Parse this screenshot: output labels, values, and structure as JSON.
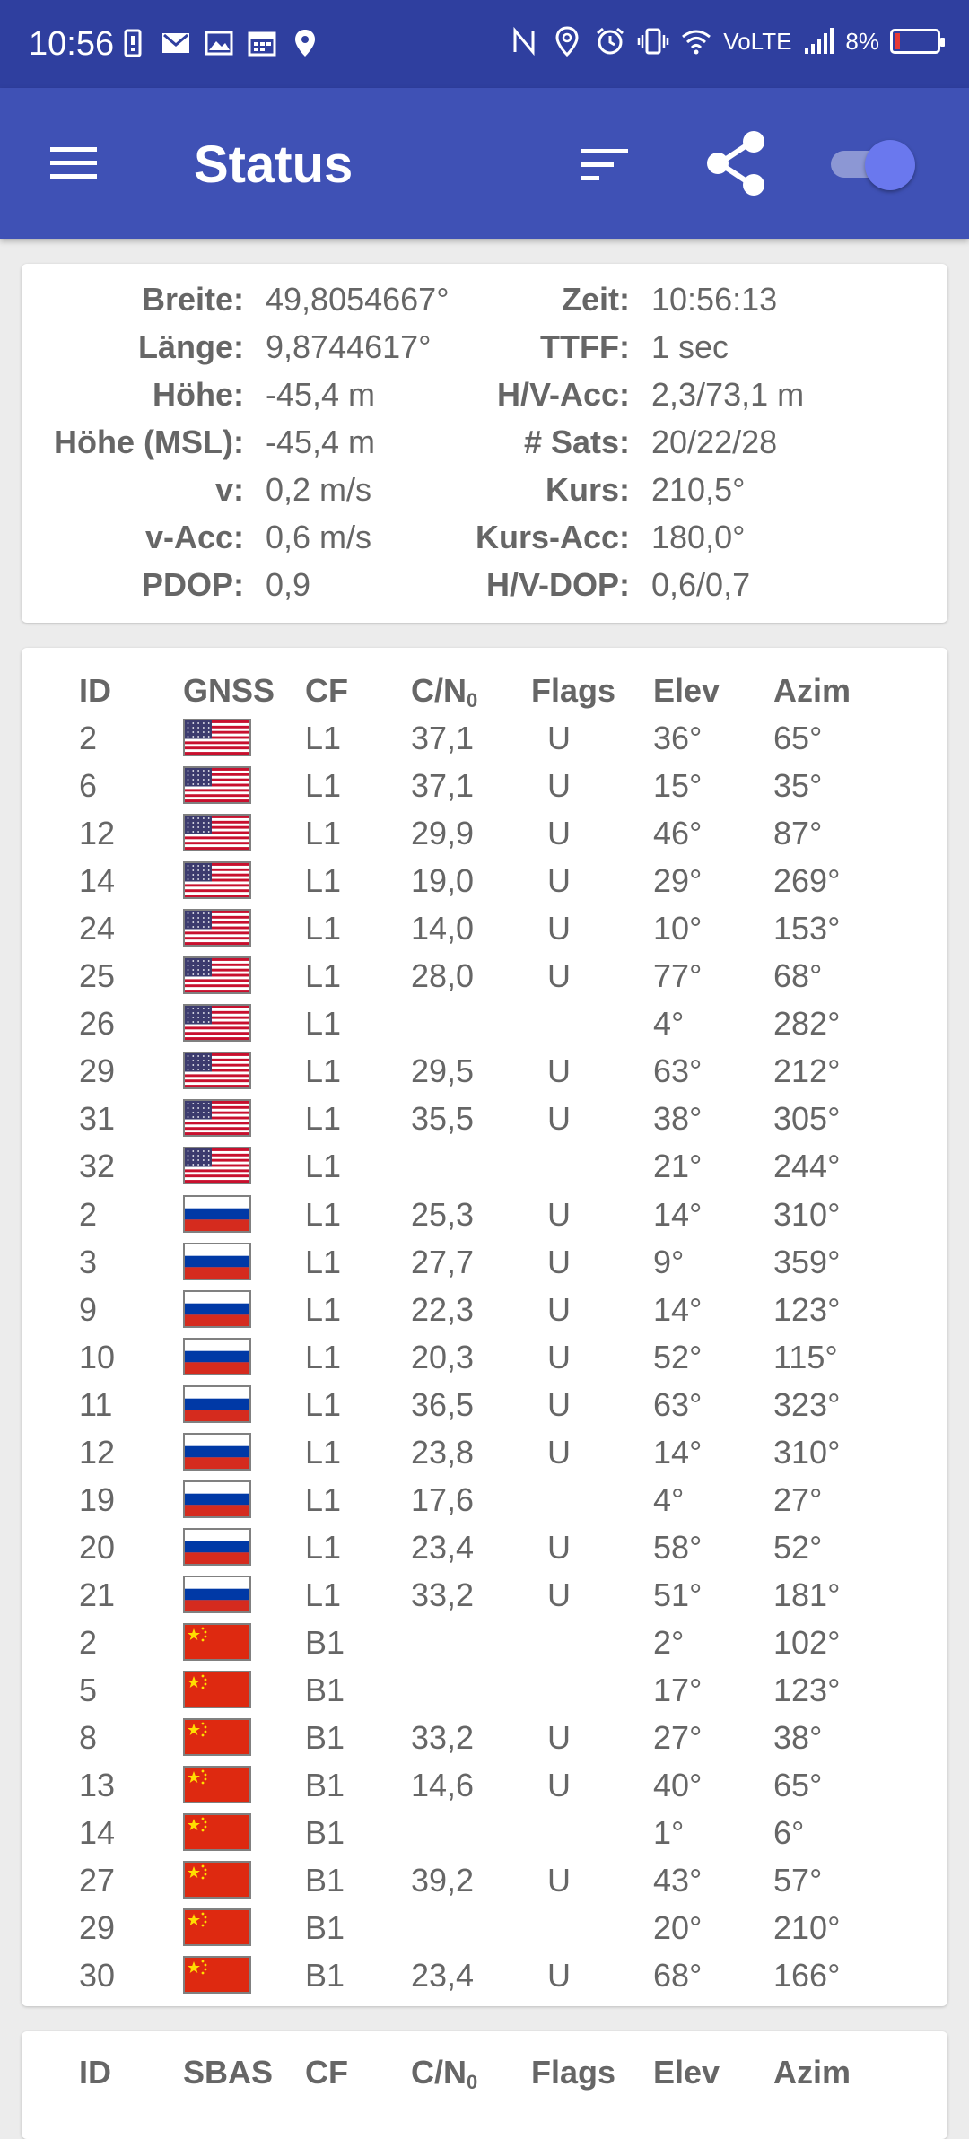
{
  "statusbar": {
    "time": "10:56",
    "network": "VoLTE",
    "battery": "8%",
    "icons_left": [
      "battery-saver-icon",
      "mail-icon",
      "gallery-icon",
      "calendar-icon",
      "location-icon"
    ],
    "icons_right": [
      "nfc-icon",
      "location-icon",
      "alarm-icon",
      "vibrate-icon",
      "wifi-icon",
      "signal-icon",
      "battery-icon"
    ]
  },
  "appbar": {
    "title": "Status",
    "toggle_on": true
  },
  "info": {
    "left": [
      {
        "label": "Breite:",
        "value": "49,8054667°"
      },
      {
        "label": "Länge:",
        "value": "9,8744617°"
      },
      {
        "label": "Höhe:",
        "value": "-45,4 m"
      },
      {
        "label": "Höhe (MSL):",
        "value": "-45,4 m"
      },
      {
        "label": "v:",
        "value": "0,2 m/s"
      },
      {
        "label": "v-Acc:",
        "value": "0,6 m/s"
      },
      {
        "label": "PDOP:",
        "value": "0,9"
      }
    ],
    "right": [
      {
        "label": "Zeit:",
        "value": "10:56:13"
      },
      {
        "label": "TTFF:",
        "value": "1 sec"
      },
      {
        "label": "H/V-Acc:",
        "value": "2,3/73,1 m"
      },
      {
        "label": "# Sats:",
        "value": "20/22/28"
      },
      {
        "label": "Kurs:",
        "value": "210,5°"
      },
      {
        "label": "Kurs-Acc:",
        "value": "180,0°"
      },
      {
        "label": "H/V-DOP:",
        "value": "0,6/0,7"
      }
    ]
  },
  "gnss_table": {
    "headers": {
      "id": "ID",
      "gnss": "GNSS",
      "cf": "CF",
      "cn0": "C/N",
      "cn0_sub": "0",
      "flags": "Flags",
      "elev": "Elev",
      "azim": "Azim"
    },
    "rows": [
      {
        "id": "2",
        "flag": "us",
        "cf": "L1",
        "cn0": "37,1",
        "flags": "U",
        "elev": "36°",
        "azim": "65°"
      },
      {
        "id": "6",
        "flag": "us",
        "cf": "L1",
        "cn0": "37,1",
        "flags": "U",
        "elev": "15°",
        "azim": "35°"
      },
      {
        "id": "12",
        "flag": "us",
        "cf": "L1",
        "cn0": "29,9",
        "flags": "U",
        "elev": "46°",
        "azim": "87°"
      },
      {
        "id": "14",
        "flag": "us",
        "cf": "L1",
        "cn0": "19,0",
        "flags": "U",
        "elev": "29°",
        "azim": "269°"
      },
      {
        "id": "24",
        "flag": "us",
        "cf": "L1",
        "cn0": "14,0",
        "flags": "U",
        "elev": "10°",
        "azim": "153°"
      },
      {
        "id": "25",
        "flag": "us",
        "cf": "L1",
        "cn0": "28,0",
        "flags": "U",
        "elev": "77°",
        "azim": "68°"
      },
      {
        "id": "26",
        "flag": "us",
        "cf": "L1",
        "cn0": "",
        "flags": "",
        "elev": "4°",
        "azim": "282°"
      },
      {
        "id": "29",
        "flag": "us",
        "cf": "L1",
        "cn0": "29,5",
        "flags": "U",
        "elev": "63°",
        "azim": "212°"
      },
      {
        "id": "31",
        "flag": "us",
        "cf": "L1",
        "cn0": "35,5",
        "flags": "U",
        "elev": "38°",
        "azim": "305°"
      },
      {
        "id": "32",
        "flag": "us",
        "cf": "L1",
        "cn0": "",
        "flags": "",
        "elev": "21°",
        "azim": "244°"
      },
      {
        "id": "2",
        "flag": "ru",
        "cf": "L1",
        "cn0": "25,3",
        "flags": "U",
        "elev": "14°",
        "azim": "310°"
      },
      {
        "id": "3",
        "flag": "ru",
        "cf": "L1",
        "cn0": "27,7",
        "flags": "U",
        "elev": "9°",
        "azim": "359°"
      },
      {
        "id": "9",
        "flag": "ru",
        "cf": "L1",
        "cn0": "22,3",
        "flags": "U",
        "elev": "14°",
        "azim": "123°"
      },
      {
        "id": "10",
        "flag": "ru",
        "cf": "L1",
        "cn0": "20,3",
        "flags": "U",
        "elev": "52°",
        "azim": "115°"
      },
      {
        "id": "11",
        "flag": "ru",
        "cf": "L1",
        "cn0": "36,5",
        "flags": "U",
        "elev": "63°",
        "azim": "323°"
      },
      {
        "id": "12",
        "flag": "ru",
        "cf": "L1",
        "cn0": "23,8",
        "flags": "U",
        "elev": "14°",
        "azim": "310°"
      },
      {
        "id": "19",
        "flag": "ru",
        "cf": "L1",
        "cn0": "17,6",
        "flags": "",
        "elev": "4°",
        "azim": "27°"
      },
      {
        "id": "20",
        "flag": "ru",
        "cf": "L1",
        "cn0": "23,4",
        "flags": "U",
        "elev": "58°",
        "azim": "52°"
      },
      {
        "id": "21",
        "flag": "ru",
        "cf": "L1",
        "cn0": "33,2",
        "flags": "U",
        "elev": "51°",
        "azim": "181°"
      },
      {
        "id": "2",
        "flag": "cn",
        "cf": "B1",
        "cn0": "",
        "flags": "",
        "elev": "2°",
        "azim": "102°"
      },
      {
        "id": "5",
        "flag": "cn",
        "cf": "B1",
        "cn0": "",
        "flags": "",
        "elev": "17°",
        "azim": "123°"
      },
      {
        "id": "8",
        "flag": "cn",
        "cf": "B1",
        "cn0": "33,2",
        "flags": "U",
        "elev": "27°",
        "azim": "38°"
      },
      {
        "id": "13",
        "flag": "cn",
        "cf": "B1",
        "cn0": "14,6",
        "flags": "U",
        "elev": "40°",
        "azim": "65°"
      },
      {
        "id": "14",
        "flag": "cn",
        "cf": "B1",
        "cn0": "",
        "flags": "",
        "elev": "1°",
        "azim": "6°"
      },
      {
        "id": "27",
        "flag": "cn",
        "cf": "B1",
        "cn0": "39,2",
        "flags": "U",
        "elev": "43°",
        "azim": "57°"
      },
      {
        "id": "29",
        "flag": "cn",
        "cf": "B1",
        "cn0": "",
        "flags": "",
        "elev": "20°",
        "azim": "210°"
      },
      {
        "id": "30",
        "flag": "cn",
        "cf": "B1",
        "cn0": "23,4",
        "flags": "U",
        "elev": "68°",
        "azim": "166°"
      }
    ]
  },
  "sbas_table": {
    "headers": {
      "id": "ID",
      "sbas": "SBAS",
      "cf": "CF",
      "cn0": "C/N",
      "cn0_sub": "0",
      "flags": "Flags",
      "elev": "Elev",
      "azim": "Azim"
    }
  }
}
